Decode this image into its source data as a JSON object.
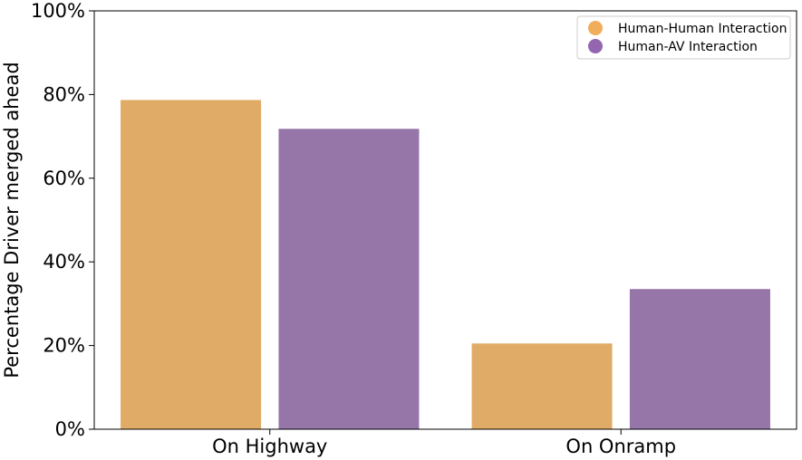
{
  "chart_data": {
    "type": "bar",
    "title": "",
    "xlabel": "",
    "ylabel": "Percentage Driver merged ahead",
    "categories": [
      "On Highway",
      "On Onramp"
    ],
    "series": [
      {
        "name": "Human-Human Interaction",
        "values": [
          78.7,
          20.5
        ],
        "color": "#E0AB66"
      },
      {
        "name": "Human-AV Interaction",
        "values": [
          71.8,
          33.5
        ],
        "color": "#9675A9"
      }
    ],
    "legend_marker_colors": [
      "#F0AD5A",
      "#9466B0"
    ],
    "ylim": [
      0,
      100
    ],
    "yticks": [
      0,
      20,
      40,
      60,
      80,
      100
    ],
    "ytick_labels": [
      "0%",
      "20%",
      "40%",
      "60%",
      "80%",
      "100%"
    ],
    "grid": false,
    "legend_position": "top-right"
  }
}
